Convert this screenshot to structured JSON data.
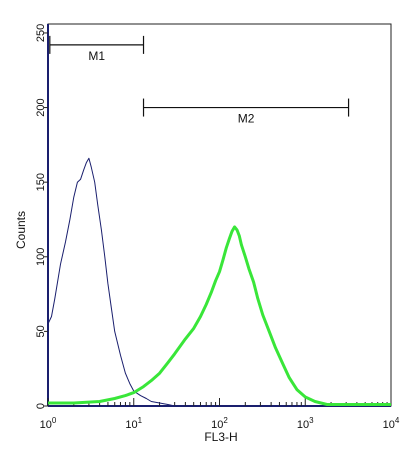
{
  "chart_data": {
    "type": "line",
    "xlabel": "FL3-H",
    "ylabel": "Counts",
    "x_scale": "log",
    "xlim": [
      1,
      10000
    ],
    "ylim": [
      0,
      256
    ],
    "x_ticks": [
      {
        "value": 1,
        "base": "10",
        "exp": "0"
      },
      {
        "value": 10,
        "base": "10",
        "exp": "1"
      },
      {
        "value": 100,
        "base": "10",
        "exp": "2"
      },
      {
        "value": 1000,
        "base": "10",
        "exp": "3"
      },
      {
        "value": 10000,
        "base": "10",
        "exp": "4"
      }
    ],
    "y_ticks": [
      0,
      50,
      100,
      150,
      200,
      250
    ],
    "markers": [
      {
        "label": "M1",
        "x_start": 1.05,
        "x_end": 13,
        "y": 242
      },
      {
        "label": "M2",
        "x_start": 13,
        "x_end": 3200,
        "y": 200
      }
    ],
    "series": [
      {
        "color": "#1a1f6e",
        "x": [
          1,
          1.1,
          1.2,
          1.4,
          1.6,
          1.8,
          2.0,
          2.2,
          2.4,
          2.6,
          2.8,
          3.0,
          3.2,
          3.5,
          3.8,
          4.2,
          4.6,
          5.0,
          5.5,
          6.0,
          7.0,
          8.0,
          9.0,
          10,
          12,
          14,
          16,
          20,
          25,
          30,
          40
        ],
        "y": [
          55,
          60,
          72,
          95,
          110,
          125,
          140,
          150,
          152,
          158,
          163,
          166,
          160,
          150,
          135,
          118,
          100,
          82,
          65,
          50,
          34,
          22,
          15,
          10,
          7,
          5,
          3,
          2,
          1,
          0,
          0
        ]
      },
      {
        "color": "#39e639",
        "x": [
          1,
          2,
          4,
          6,
          8,
          10,
          13,
          16,
          20,
          25,
          30,
          40,
          50,
          60,
          70,
          80,
          90,
          100,
          110,
          120,
          130,
          140,
          150,
          160,
          170,
          180,
          200,
          220,
          250,
          280,
          320,
          380,
          450,
          550,
          650,
          800,
          1000,
          1300,
          1800,
          3000,
          10000
        ],
        "y": [
          2,
          2,
          3,
          5,
          7,
          9,
          13,
          17,
          22,
          29,
          35,
          45,
          52,
          60,
          68,
          76,
          84,
          90,
          98,
          106,
          112,
          117,
          120,
          118,
          114,
          108,
          100,
          92,
          83,
          72,
          61,
          50,
          39,
          28,
          19,
          11,
          6,
          3,
          1,
          1,
          1
        ]
      }
    ]
  }
}
